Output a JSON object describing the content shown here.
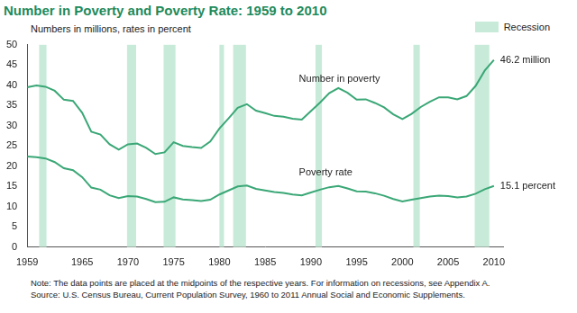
{
  "chart_data": {
    "type": "line",
    "title": "Number in Poverty and Poverty Rate: 1959 to 2010",
    "subtitle": "Numbers in millions, rates in percent",
    "x": [
      1959,
      1960,
      1961,
      1962,
      1963,
      1964,
      1965,
      1966,
      1967,
      1968,
      1969,
      1970,
      1971,
      1972,
      1973,
      1974,
      1975,
      1976,
      1977,
      1978,
      1979,
      1980,
      1981,
      1982,
      1983,
      1984,
      1985,
      1986,
      1987,
      1988,
      1989,
      1990,
      1991,
      1992,
      1993,
      1994,
      1995,
      1996,
      1997,
      1998,
      1999,
      2000,
      2001,
      2002,
      2003,
      2004,
      2005,
      2006,
      2007,
      2008,
      2009,
      2010
    ],
    "series": [
      {
        "name": "Number in poverty",
        "color": "#3aa776",
        "values": [
          39.5,
          39.9,
          39.6,
          38.6,
          36.4,
          36.1,
          33.2,
          28.5,
          27.8,
          25.4,
          24.1,
          25.4,
          25.6,
          24.5,
          23.0,
          23.4,
          25.9,
          25.0,
          24.7,
          24.5,
          26.1,
          29.3,
          31.8,
          34.4,
          35.3,
          33.7,
          33.1,
          32.4,
          32.2,
          31.7,
          31.5,
          33.6,
          35.7,
          38.0,
          39.3,
          38.1,
          36.4,
          36.5,
          35.6,
          34.5,
          32.8,
          31.6,
          32.9,
          34.6,
          35.9,
          37.0,
          37.0,
          36.5,
          37.3,
          39.8,
          43.6,
          46.2
        ]
      },
      {
        "name": "Poverty rate",
        "color": "#3aa776",
        "values": [
          22.4,
          22.2,
          21.9,
          21.0,
          19.5,
          19.0,
          17.3,
          14.7,
          14.2,
          12.8,
          12.1,
          12.6,
          12.5,
          11.9,
          11.1,
          11.2,
          12.3,
          11.8,
          11.6,
          11.4,
          11.7,
          13.0,
          14.0,
          15.0,
          15.2,
          14.4,
          14.0,
          13.6,
          13.4,
          13.0,
          12.8,
          13.5,
          14.2,
          14.8,
          15.1,
          14.5,
          13.8,
          13.7,
          13.3,
          12.7,
          11.9,
          11.3,
          11.7,
          12.1,
          12.5,
          12.7,
          12.6,
          12.3,
          12.5,
          13.2,
          14.3,
          15.1
        ]
      }
    ],
    "xlim": [
      1959,
      2011
    ],
    "xticks": [
      1959,
      1965,
      1970,
      1975,
      1980,
      1985,
      1990,
      1995,
      2000,
      2005,
      2010
    ],
    "ylim": [
      0,
      50
    ],
    "yticks": [
      0,
      5,
      10,
      15,
      20,
      25,
      30,
      35,
      40,
      45,
      50
    ],
    "grid": false,
    "legend": "top right",
    "recessions": {
      "name": "Recession",
      "color": "#c8ebd9",
      "ranges": [
        [
          1960.3,
          1961.1
        ],
        [
          1969.9,
          1970.9
        ],
        [
          1973.9,
          1975.2
        ],
        [
          1980.0,
          1980.5
        ],
        [
          1981.5,
          1982.9
        ],
        [
          1990.5,
          1991.2
        ],
        [
          2001.2,
          2001.9
        ],
        [
          2007.9,
          2009.5
        ]
      ]
    },
    "annotations": [
      {
        "text": "Number in poverty",
        "x": 1988,
        "y": 41.5
      },
      {
        "text": "Poverty rate",
        "x": 1988,
        "y": 18.5
      },
      {
        "text": "46.2 million",
        "x": 2010,
        "y": 46.2
      },
      {
        "text": "15.1 percent",
        "x": 2010,
        "y": 15.1
      }
    ],
    "notes": [
      "Note: The data points are placed at the midpoints of the respective years. For information on recessions, see Appendix A.",
      "Source: U.S. Census Bureau, Current Population Survey, 1960 to 2011 Annual Social and Economic Supplements."
    ]
  }
}
